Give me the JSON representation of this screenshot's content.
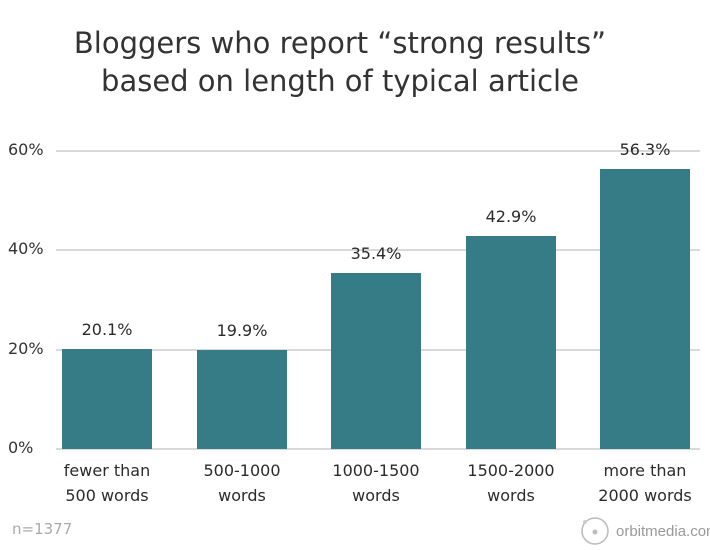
{
  "chart_data": {
    "type": "bar",
    "title": [
      "Bloggers who report “strong results”",
      "based on length of typical article"
    ],
    "categories": [
      [
        "fewer than",
        "500 words"
      ],
      [
        "500-1000",
        "words"
      ],
      [
        "1000-1500",
        "words"
      ],
      [
        "1500-2000",
        "words"
      ],
      [
        "more than",
        "2000 words"
      ]
    ],
    "values": [
      20.1,
      19.9,
      35.4,
      42.9,
      56.3
    ],
    "data_labels": [
      "20.1%",
      "19.9%",
      "35.4%",
      "42.9%",
      "56.3%"
    ],
    "yticks": [
      0,
      20,
      40,
      60
    ],
    "ytick_labels": [
      "0%",
      "20%",
      "40%",
      "60%"
    ],
    "ylim": [
      0,
      60
    ],
    "grid": true,
    "xlabel": "",
    "ylabel": "",
    "bar_color": "#357c87"
  },
  "footnote": "n=1377",
  "logo": {
    "text": "orbitmedia.com",
    "icon": "orbit-circle-icon"
  }
}
